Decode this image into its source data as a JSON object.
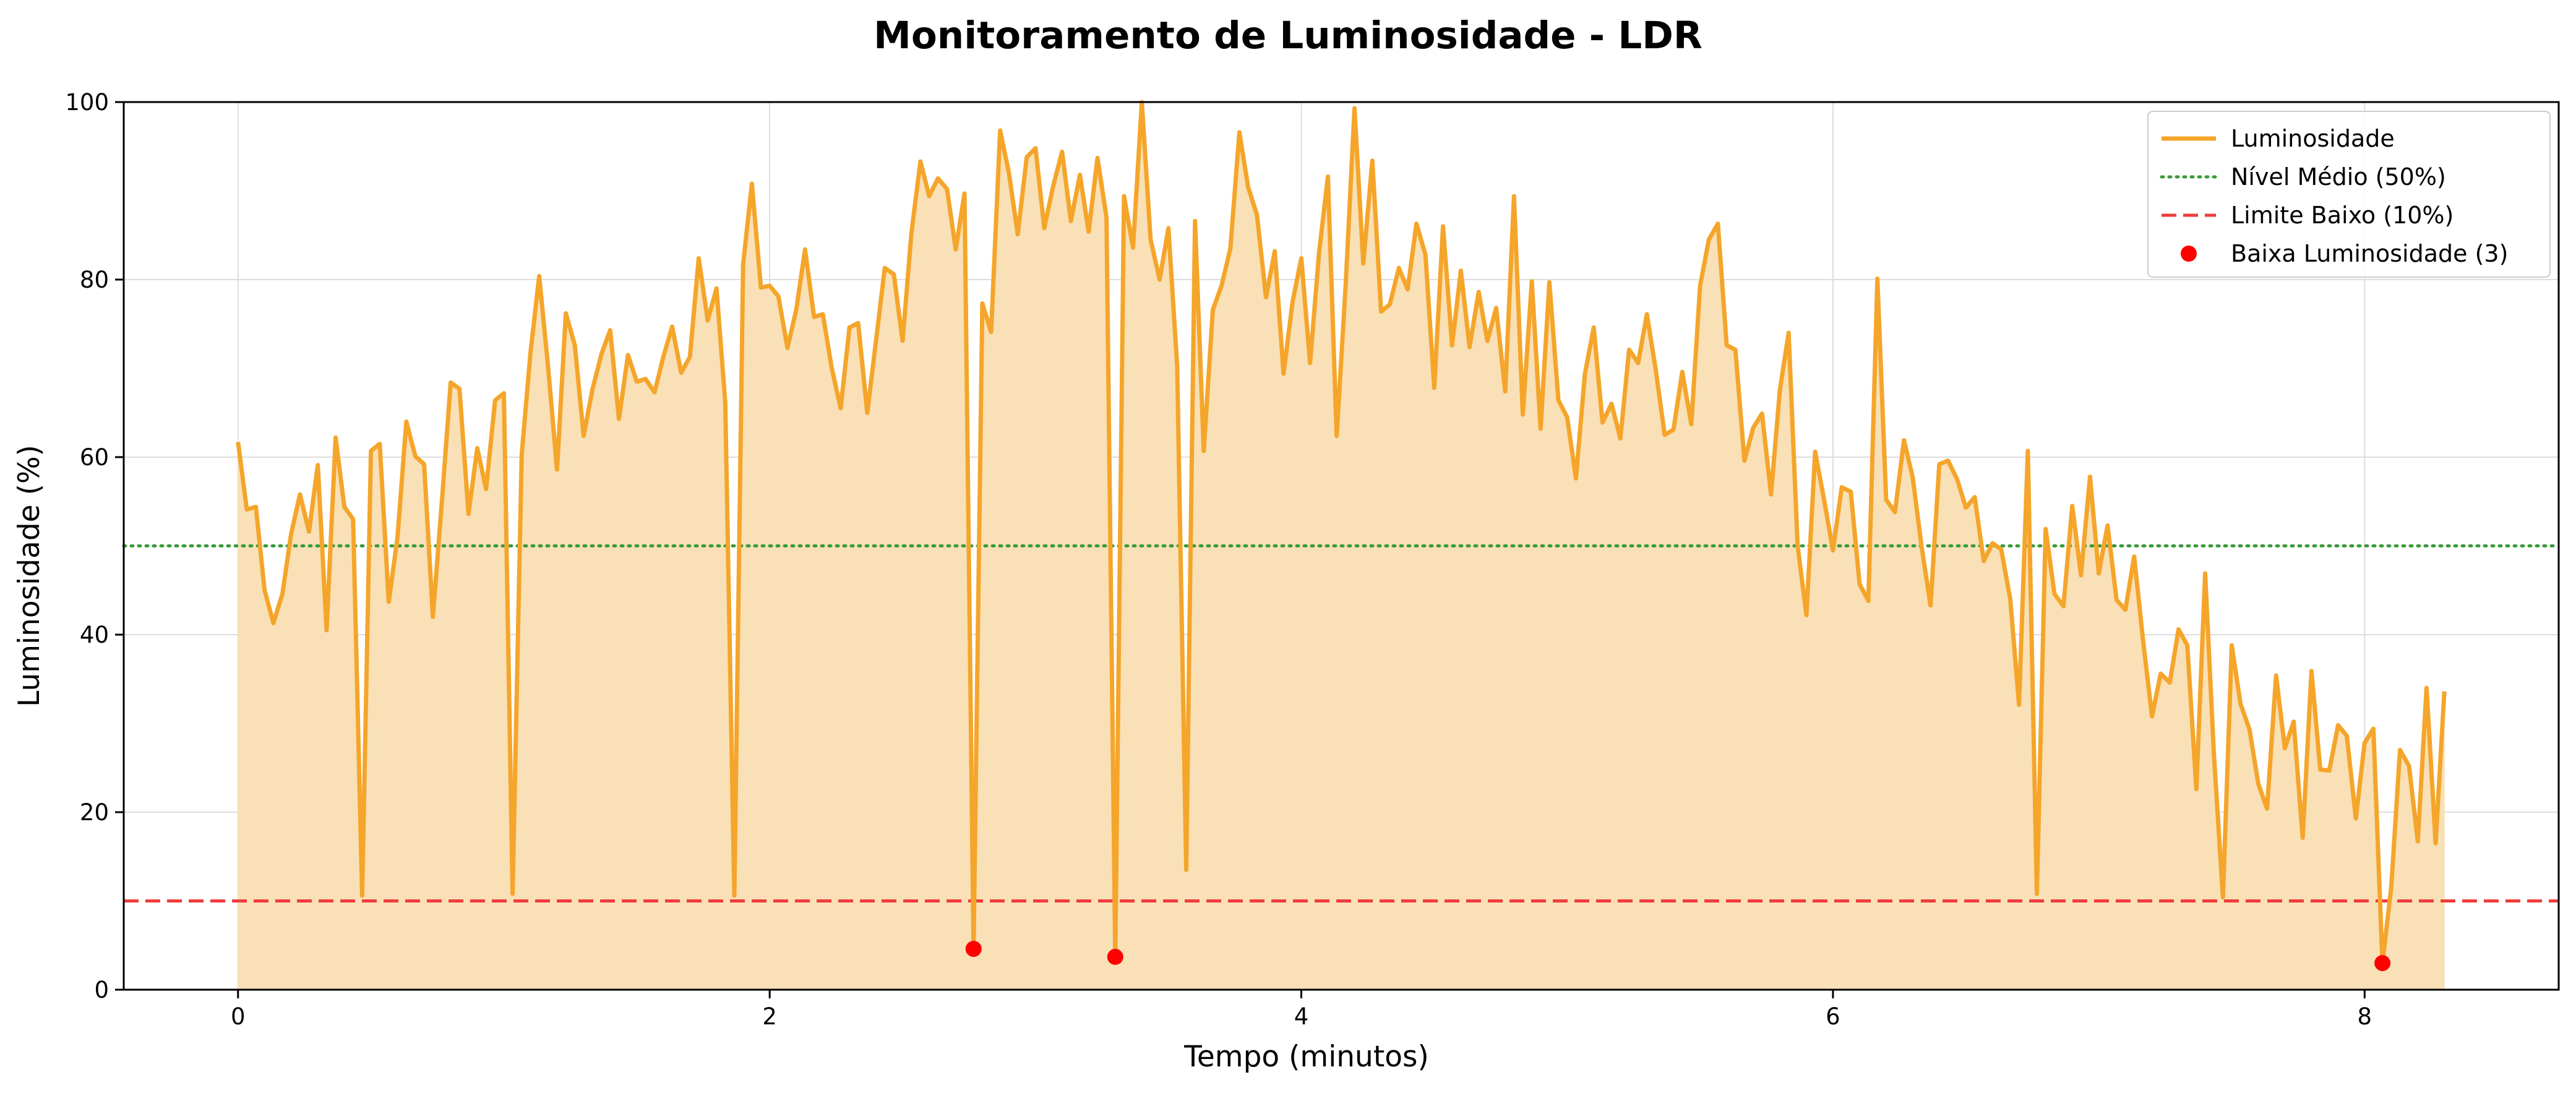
{
  "chart_data": {
    "type": "line",
    "title": "Monitoramento de Luminosidade - LDR",
    "xlabel": "Tempo (minutos)",
    "ylabel": "Luminosidade (%)",
    "xlim": [
      -0.43,
      8.73
    ],
    "ylim": [
      0,
      100
    ],
    "xticks": [
      0,
      2,
      4,
      6,
      8
    ],
    "yticks": [
      0,
      20,
      40,
      60,
      80,
      100
    ],
    "grid": true,
    "legend_position": "top-right",
    "colors": {
      "line": "#f5a52a",
      "fill": "#f9e0b6",
      "mean_line": "#3a9a3a",
      "low_line": "#f03c3c",
      "low_points": "#ff0000"
    },
    "series": [
      {
        "name": "Luminosidade",
        "x": [
          0.0,
          0.033,
          0.067,
          0.1,
          0.133,
          0.167,
          0.2,
          0.233,
          0.267,
          0.3,
          0.333,
          0.367,
          0.4,
          0.433,
          0.467,
          0.5,
          0.533,
          0.567,
          0.6,
          0.633,
          0.667,
          0.7,
          0.733,
          0.767,
          0.8,
          0.833,
          0.867,
          0.9,
          0.933,
          0.967,
          1.0,
          1.033,
          1.067,
          1.1,
          1.133,
          1.167,
          1.2,
          1.233,
          1.267,
          1.3,
          1.333,
          1.367,
          1.4,
          1.433,
          1.467,
          1.5,
          1.533,
          1.567,
          1.6,
          1.633,
          1.667,
          1.7,
          1.733,
          1.767,
          1.8,
          1.833,
          1.867,
          1.9,
          1.933,
          1.967,
          2.0,
          2.033,
          2.067,
          2.1,
          2.133,
          2.167,
          2.2,
          2.233,
          2.267,
          2.3,
          2.333,
          2.367,
          2.4,
          2.433,
          2.467,
          2.5,
          2.533,
          2.567,
          2.6,
          2.633,
          2.667,
          2.7,
          2.733,
          2.767,
          2.8,
          2.833,
          2.867,
          2.9,
          2.933,
          2.967,
          3.0,
          3.033,
          3.067,
          3.1,
          3.133,
          3.167,
          3.2,
          3.233,
          3.267,
          3.3,
          3.333,
          3.367,
          3.4,
          3.433,
          3.467,
          3.5,
          3.533,
          3.567,
          3.6,
          3.633,
          3.667,
          3.7,
          3.733,
          3.767,
          3.8,
          3.833,
          3.867,
          3.9,
          3.933,
          3.967,
          4.0,
          4.033,
          4.067,
          4.1,
          4.133,
          4.167,
          4.2,
          4.233,
          4.267,
          4.3,
          4.333,
          4.367,
          4.4,
          4.433,
          4.467,
          4.5,
          4.533,
          4.567,
          4.6,
          4.633,
          4.667,
          4.7,
          4.733,
          4.767,
          4.8,
          4.833,
          4.867,
          4.9,
          4.933,
          4.967,
          5.0,
          5.033,
          5.067,
          5.1,
          5.133,
          5.167,
          5.2,
          5.233,
          5.267,
          5.3,
          5.333,
          5.367,
          5.4,
          5.433,
          5.467,
          5.5,
          5.533,
          5.567,
          5.6,
          5.633,
          5.667,
          5.7,
          5.733,
          5.767,
          5.8,
          5.833,
          5.867,
          5.9,
          5.933,
          5.967,
          6.0,
          6.033,
          6.067,
          6.1,
          6.133,
          6.167,
          6.2,
          6.233,
          6.267,
          6.3,
          6.333,
          6.367,
          6.4,
          6.433,
          6.467,
          6.5,
          6.533,
          6.567,
          6.6,
          6.633,
          6.667,
          6.7,
          6.733,
          6.767,
          6.8,
          6.833,
          6.867,
          6.9,
          6.933,
          6.967,
          7.0,
          7.033,
          7.067,
          7.1,
          7.133,
          7.167,
          7.2,
          7.233,
          7.267,
          7.3,
          7.333,
          7.367,
          7.4,
          7.433,
          7.467,
          7.5,
          7.533,
          7.567,
          7.6,
          7.633,
          7.667,
          7.7,
          7.733,
          7.767,
          7.8,
          7.833,
          7.867,
          7.9,
          7.933,
          7.967,
          8.0,
          8.033,
          8.067,
          8.1,
          8.133,
          8.167,
          8.2,
          8.233,
          8.267,
          8.3
        ],
        "y": [
          61.7,
          54.1,
          54.4,
          45.0,
          41.3,
          44.6,
          51.4,
          55.8,
          51.6,
          59.1,
          40.5,
          62.2,
          54.4,
          53.0,
          10.6,
          60.7,
          61.5,
          43.7,
          51.0,
          64.0,
          60.1,
          59.2,
          42.0,
          55.0,
          68.4,
          67.7,
          53.6,
          61.0,
          56.4,
          66.4,
          67.2,
          10.8,
          60.3,
          71.7,
          80.4,
          70.0,
          58.6,
          76.2,
          72.6,
          62.4,
          67.6,
          71.6,
          74.3,
          64.3,
          71.5,
          68.5,
          68.8,
          67.3,
          71.3,
          74.7,
          69.5,
          71.3,
          82.4,
          75.4,
          79.0,
          66.1,
          10.6,
          81.7,
          90.8,
          79.1,
          79.3,
          78.1,
          72.3,
          76.6,
          83.4,
          75.8,
          76.1,
          70.1,
          65.5,
          74.6,
          75.1,
          65.0,
          73.1,
          81.3,
          80.6,
          73.1,
          85.2,
          93.3,
          89.4,
          91.4,
          90.2,
          83.4,
          89.7,
          4.6,
          77.3,
          74.1,
          96.8,
          92.0,
          85.1,
          93.8,
          94.8,
          85.8,
          90.6,
          94.4,
          86.6,
          91.8,
          85.4,
          93.7,
          87.0,
          3.7,
          89.4,
          83.6,
          100.0,
          84.5,
          80.0,
          85.8,
          70.2,
          13.5,
          86.6,
          60.7,
          76.6,
          79.3,
          83.5,
          96.6,
          90.4,
          87.3,
          78.0,
          83.2,
          69.4,
          77.5,
          82.4,
          70.6,
          83.1,
          91.6,
          62.4,
          79.5,
          99.3,
          81.8,
          93.4,
          76.4,
          77.2,
          81.3,
          78.9,
          86.3,
          82.8,
          67.8,
          86.0,
          72.6,
          81.0,
          72.4,
          78.6,
          73.1,
          76.8,
          67.4,
          89.4,
          64.8,
          79.8,
          63.2,
          79.7,
          66.4,
          64.5,
          57.6,
          69.4,
          74.6,
          63.9,
          66.0,
          62.1,
          72.1,
          70.6,
          76.1,
          69.9,
          62.5,
          63.1,
          69.6,
          63.7,
          79.3,
          84.5,
          86.3,
          72.6,
          72.1,
          59.6,
          63.3,
          64.9,
          55.8,
          67.5,
          74.0,
          50.0,
          42.2,
          60.6,
          55.1,
          49.5,
          56.6,
          56.1,
          45.7,
          43.8,
          80.1,
          55.2,
          53.8,
          61.9,
          57.7,
          50.0,
          43.3,
          59.2,
          59.6,
          57.5,
          54.3,
          55.5,
          48.3,
          50.3,
          49.6,
          44.0,
          32.1,
          60.7,
          10.8,
          51.9,
          44.6,
          43.2,
          54.5,
          46.7,
          57.8,
          46.9,
          52.3,
          43.9,
          42.8,
          48.8,
          39.2,
          30.8,
          35.6,
          34.6,
          40.6,
          38.8,
          22.6,
          46.9,
          26.5,
          10.4,
          38.8,
          32.2,
          29.3,
          23.2,
          20.4,
          35.4,
          27.2,
          30.2,
          17.1,
          35.9,
          24.8,
          24.7,
          29.8,
          28.6,
          19.3,
          27.8,
          29.4,
          3.0,
          11.5,
          27.0,
          25.2,
          16.7,
          34.0,
          16.5,
          33.6
        ]
      },
      {
        "name": "Nível Médio (50%)",
        "value": 50
      },
      {
        "name": "Limite Baixo (10%)",
        "value": 10
      },
      {
        "name": "Baixa Luminosidade (3)",
        "x": [
          2.767,
          3.3,
          8.067
        ],
        "y": [
          4.6,
          3.7,
          3.0
        ]
      }
    ]
  }
}
